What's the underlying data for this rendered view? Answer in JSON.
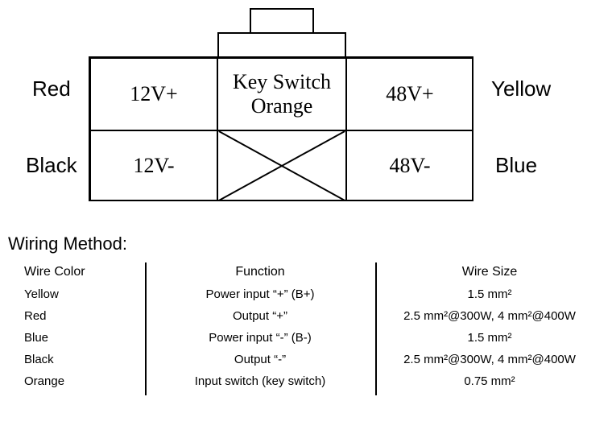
{
  "diagram": {
    "labels": {
      "red": "Red",
      "black": "Black",
      "yellow": "Yellow",
      "blue": "Blue"
    },
    "cells": {
      "c1": "12V+",
      "c2a": "Key Switch",
      "c2b": "Orange",
      "c3": "48V+",
      "c4": "12V-",
      "c6": "48V-"
    }
  },
  "heading": "Wiring Method:",
  "table": {
    "headers": [
      "Wire Color",
      "Function",
      "Wire Size"
    ],
    "rows": [
      [
        "Yellow",
        "Power input “+” (B+)",
        "1.5 mm²"
      ],
      [
        "Red",
        "Output “+”",
        "2.5 mm²@300W, 4 mm²@400W"
      ],
      [
        "Blue",
        "Power input “-” (B-)",
        "1.5 mm²"
      ],
      [
        "Black",
        "Output “-”",
        "2.5 mm²@300W, 4 mm²@400W"
      ],
      [
        "Orange",
        "Input switch (key switch)",
        "0.75 mm²"
      ]
    ]
  }
}
